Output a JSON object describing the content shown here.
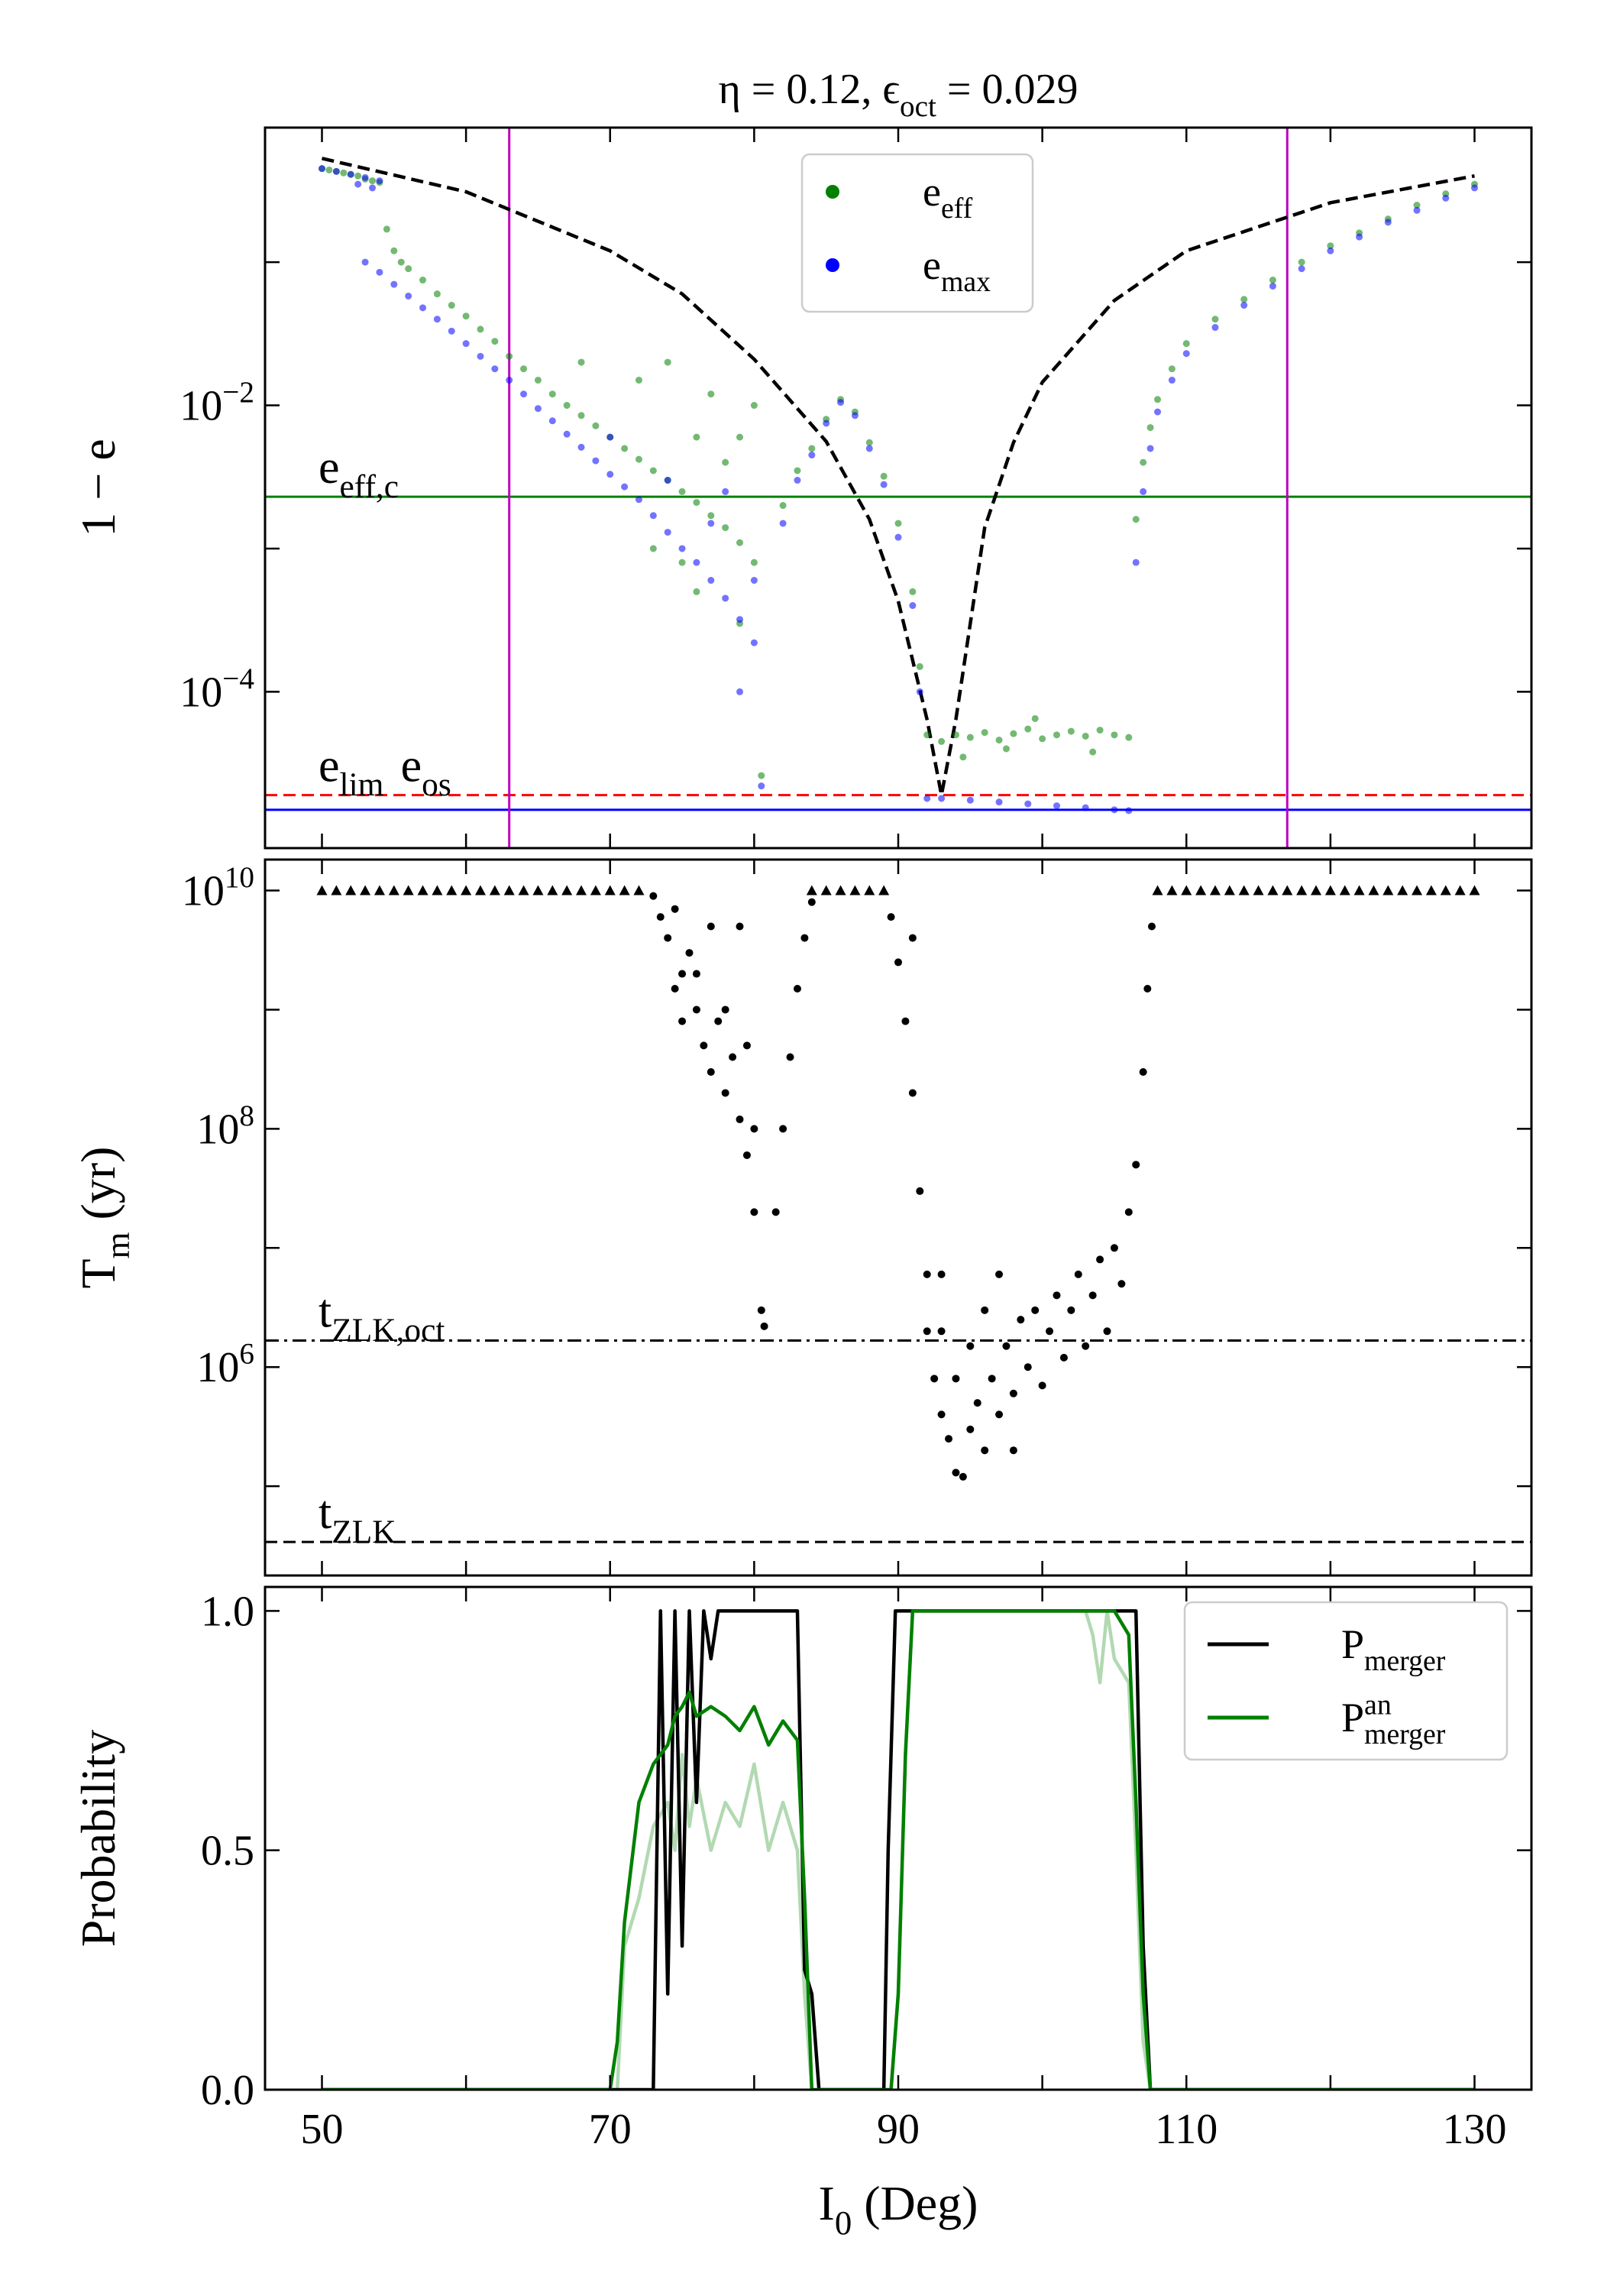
{
  "chart_data": [
    {
      "type": "scatter",
      "title": "η = 0.12, ϵ_{oct} = 0.029",
      "ylabel": "1 − e",
      "yscale": "log",
      "xlim": [
        46.05,
        133.95
      ],
      "xticks": [
        50,
        70,
        90,
        110,
        130
      ],
      "xminorticks": [
        60,
        80,
        100,
        120
      ],
      "ylim": [
        8.1e-06,
        0.87
      ],
      "yticks": [
        {
          "value": 0.01,
          "label": "10^{−2}"
        },
        {
          "value": 0.0001,
          "label": "10^{−4}"
        }
      ],
      "yminorticks": [
        0.1,
        0.001
      ],
      "legend": "upper center",
      "series": [
        {
          "type": "line",
          "color": "#000000",
          "style": "dashed",
          "x": [
            50,
            60,
            70,
            75,
            80,
            85,
            88,
            90,
            92,
            93,
            94,
            96,
            98,
            100,
            105,
            110,
            120,
            130
          ],
          "values": [
            0.53,
            0.31,
            0.12,
            0.06,
            0.021,
            0.0056,
            0.0016,
            0.00043,
            6.4e-05,
            1.9e-05,
            6.4e-05,
            0.0014,
            0.0055,
            0.0145,
            0.054,
            0.12,
            0.26,
            0.4
          ]
        },
        {
          "type": "scatter",
          "name": "e_{eff}",
          "color": "#008000",
          "x": [
            50,
            50.5,
            51,
            51.5,
            52,
            52.5,
            53,
            53.5,
            54,
            54.5,
            55,
            55.5,
            56,
            57,
            58,
            59,
            60,
            61,
            62,
            63,
            64,
            65,
            66,
            67,
            68,
            69,
            70,
            71,
            72,
            73,
            74,
            75,
            76,
            77,
            78,
            79,
            80,
            68,
            72,
            74,
            76,
            77,
            78,
            79,
            80,
            73,
            75,
            76,
            79,
            80.5,
            82,
            83,
            84,
            85,
            86,
            87,
            88,
            89,
            90,
            91,
            91.5,
            92,
            93,
            94,
            95,
            96,
            97,
            98,
            99,
            100,
            101,
            102,
            103,
            104,
            105,
            106,
            94.5,
            99.5,
            103.5,
            97.5,
            106.5,
            107,
            107.5,
            108,
            109,
            110,
            112,
            114,
            116,
            118,
            120,
            122,
            124,
            126,
            128,
            130
          ],
          "values": [
            0.45,
            0.44,
            0.43,
            0.42,
            0.41,
            0.4,
            0.38,
            0.37,
            0.36,
            0.17,
            0.12,
            0.1,
            0.09,
            0.075,
            0.06,
            0.05,
            0.042,
            0.034,
            0.028,
            0.022,
            0.018,
            0.015,
            0.012,
            0.01,
            0.0085,
            0.0072,
            0.006,
            0.005,
            0.0042,
            0.0035,
            0.003,
            0.0025,
            0.0021,
            0.0017,
            0.0014,
            0.0011,
            0.0008,
            0.02,
            0.015,
            0.02,
            0.006,
            0.012,
            0.004,
            0.006,
            0.01,
            0.001,
            0.0008,
            0.0005,
            0.0003,
            2.6e-05,
            0.002,
            0.0035,
            0.005,
            0.008,
            0.011,
            0.009,
            0.0055,
            0.0032,
            0.0015,
            0.0005,
            0.00015,
            5e-05,
            4.5e-05,
            5e-05,
            4.8e-05,
            5.2e-05,
            4.6e-05,
            5.1e-05,
            5.5e-05,
            4.7e-05,
            5e-05,
            5.3e-05,
            4.9e-05,
            5.4e-05,
            5e-05,
            4.8e-05,
            3.5e-05,
            6.5e-05,
            3.8e-05,
            4e-05,
            0.0016,
            0.004,
            0.007,
            0.011,
            0.018,
            0.027,
            0.04,
            0.055,
            0.075,
            0.1,
            0.13,
            0.16,
            0.2,
            0.25,
            0.3,
            0.35
          ]
        },
        {
          "type": "scatter",
          "name": "e_{max}",
          "color": "#0000ff",
          "x": [
            50,
            51,
            52,
            53,
            54,
            52.5,
            53.5,
            53,
            54,
            55,
            56,
            57,
            58,
            59,
            60,
            61,
            62,
            63,
            64,
            65,
            66,
            67,
            68,
            69,
            70,
            71,
            72,
            73,
            74,
            75,
            76,
            77,
            78,
            79,
            80,
            70,
            74,
            77,
            78,
            80,
            79,
            80.5,
            82,
            83,
            84,
            85,
            86,
            87,
            88,
            89,
            90,
            91,
            91.5,
            92,
            93,
            95,
            97,
            99,
            101,
            103,
            105,
            106,
            106.5,
            107,
            107.5,
            108,
            109,
            110,
            112,
            114,
            116,
            118,
            120,
            122,
            124,
            126,
            128,
            130
          ],
          "values": [
            0.45,
            0.43,
            0.41,
            0.39,
            0.37,
            0.35,
            0.33,
            0.1,
            0.085,
            0.07,
            0.058,
            0.048,
            0.04,
            0.033,
            0.027,
            0.022,
            0.018,
            0.015,
            0.012,
            0.0095,
            0.0078,
            0.0063,
            0.0051,
            0.0041,
            0.0033,
            0.0027,
            0.0022,
            0.0017,
            0.0013,
            0.001,
            0.0008,
            0.0006,
            0.00045,
            0.00032,
            0.00022,
            0.006,
            0.003,
            0.0015,
            0.0025,
            0.0006,
            0.0001,
            2.2e-05,
            0.0015,
            0.003,
            0.0045,
            0.0075,
            0.0105,
            0.0085,
            0.005,
            0.0028,
            0.0012,
            0.0004,
            0.0001,
            1.8e-05,
            1.8e-05,
            1.75e-05,
            1.7e-05,
            1.65e-05,
            1.6e-05,
            1.55e-05,
            1.5e-05,
            1.48e-05,
            0.0008,
            0.0025,
            0.005,
            0.009,
            0.015,
            0.023,
            0.035,
            0.05,
            0.068,
            0.09,
            0.12,
            0.15,
            0.19,
            0.23,
            0.28,
            0.33
          ]
        }
      ],
      "hlines": [
        {
          "value": 0.0023,
          "color": "#008000",
          "style": "solid",
          "label": "e_{eff,c}"
        },
        {
          "value": 1.9e-05,
          "color": "#ff0000",
          "style": "dashed",
          "label": "e_{lim}"
        },
        {
          "value": 1.5e-05,
          "color": "#0000ff",
          "style": "solid",
          "label": "e_{os}"
        }
      ],
      "vlines": [
        {
          "value": 63,
          "color": "#bf00bf"
        },
        {
          "value": 117,
          "color": "#bf00bf"
        }
      ]
    },
    {
      "type": "scatter",
      "ylabel": "T_{m} (yr)",
      "yscale": "log",
      "xlim": [
        46.05,
        133.95
      ],
      "xticks": [
        50,
        70,
        90,
        110,
        130
      ],
      "xminorticks": [
        60,
        80,
        100,
        120
      ],
      "ylim": [
        17800.0,
        18200000000.0
      ],
      "yticks": [
        {
          "value": 10000000000.0,
          "label": "10^{10}"
        },
        {
          "value": 100000000.0,
          "label": "10^{8}"
        },
        {
          "value": 1000000.0,
          "label": "10^{6}"
        }
      ],
      "yminorticks": [
        1000000000.0,
        10000000.0,
        100000.0
      ],
      "series": [
        {
          "type": "scatter",
          "marker": "^",
          "color": "#000000",
          "x": [
            50,
            51,
            52,
            53,
            54,
            55,
            56,
            57,
            58,
            59,
            60,
            61,
            62,
            63,
            64,
            65,
            66,
            67,
            68,
            69,
            70,
            71,
            72,
            84,
            85,
            86,
            87,
            88,
            89,
            108,
            109,
            110,
            111,
            112,
            113,
            114,
            115,
            116,
            117,
            118,
            119,
            120,
            121,
            122,
            123,
            124,
            125,
            126,
            127,
            128,
            129,
            130
          ],
          "values": [
            10000000000.0,
            10000000000.0,
            10000000000.0,
            10000000000.0,
            10000000000.0,
            10000000000.0,
            10000000000.0,
            10000000000.0,
            10000000000.0,
            10000000000.0,
            10000000000.0,
            10000000000.0,
            10000000000.0,
            10000000000.0,
            10000000000.0,
            10000000000.0,
            10000000000.0,
            10000000000.0,
            10000000000.0,
            10000000000.0,
            10000000000.0,
            10000000000.0,
            10000000000.0,
            10000000000.0,
            10000000000.0,
            10000000000.0,
            10000000000.0,
            10000000000.0,
            10000000000.0,
            10000000000.0,
            10000000000.0,
            10000000000.0,
            10000000000.0,
            10000000000.0,
            10000000000.0,
            10000000000.0,
            10000000000.0,
            10000000000.0,
            10000000000.0,
            10000000000.0,
            10000000000.0,
            10000000000.0,
            10000000000.0,
            10000000000.0,
            10000000000.0,
            10000000000.0,
            10000000000.0,
            10000000000.0,
            10000000000.0,
            10000000000.0,
            10000000000.0,
            10000000000.0
          ]
        },
        {
          "type": "scatter",
          "marker": "o",
          "color": "#000000",
          "x": [
            73,
            73.5,
            74,
            74.5,
            75,
            75.5,
            76,
            76.5,
            77,
            77.5,
            78,
            78.5,
            79,
            79.5,
            80,
            80.5,
            80.7,
            79,
            77,
            76,
            78,
            75,
            74.5,
            79.5,
            80,
            81.5,
            82,
            82.5,
            83,
            83.5,
            84,
            89.5,
            90,
            90.5,
            91,
            91,
            91.5,
            92,
            92,
            92.5,
            93,
            93.5,
            94,
            94.5,
            95,
            95.5,
            96,
            96.5,
            97,
            97.5,
            98,
            98.5,
            99,
            99.5,
            100,
            100.5,
            101,
            101.5,
            102,
            102.5,
            103,
            103.5,
            104,
            104.5,
            105,
            105.5,
            106,
            106.5,
            107,
            107.3,
            107.6,
            93,
            94,
            95,
            96,
            97,
            98,
            93
          ],
          "values": [
            9000000000.0,
            6000000000.0,
            4000000000.0,
            7000000000.0,
            2000000000.0,
            3000000000.0,
            1000000000.0,
            500000000.0,
            300000000.0,
            800000000.0,
            200000000.0,
            400000000.0,
            120000000.0,
            60000000.0,
            20000000.0,
            3000000.0,
            2200000.0,
            5000000000.0,
            5000000000.0,
            2000000000.0,
            1000000000.0,
            800000000.0,
            1500000000.0,
            500000000.0,
            100000000.0,
            20000000.0,
            100000000.0,
            400000000.0,
            1500000000.0,
            4000000000.0,
            8000000000.0,
            6000000000.0,
            2500000000.0,
            800000000.0,
            200000000.0,
            4000000000.0,
            30000000.0,
            6000000.0,
            2000000.0,
            800000.0,
            400000.0,
            250000.0,
            130000.0,
            120000.0,
            300000.0,
            500000.0,
            200000.0,
            800000.0,
            400000.0,
            1500000.0,
            600000.0,
            2500000.0,
            1000000.0,
            3000000.0,
            700000.0,
            2000000.0,
            4000000.0,
            1200000.0,
            3000000.0,
            6000000.0,
            1500000.0,
            4000000.0,
            8000000.0,
            2000000.0,
            10000000.0,
            5000000.0,
            20000000.0,
            50000000.0,
            300000000.0,
            1500000000.0,
            5000000000.0,
            2000000.0,
            800000.0,
            1500000.0,
            3000000.0,
            6000000.0,
            200000.0,
            6000000.0
          ]
        }
      ],
      "hlines": [
        {
          "value": 1670000.0,
          "color": "#000000",
          "style": "dashdot",
          "label": "t_{ZLK,oct}"
        },
        {
          "value": 34000.0,
          "color": "#000000",
          "style": "dashed",
          "label": "t_{ZLK}"
        }
      ]
    },
    {
      "type": "line",
      "ylabel": "Probability",
      "xlabel": "I_{0} (Deg)",
      "xlim": [
        46.05,
        133.95
      ],
      "xticks": [
        50,
        70,
        90,
        110,
        130
      ],
      "xminorticks": [
        60,
        80,
        100,
        120
      ],
      "ylim": [
        0,
        1.05
      ],
      "yticks": [
        {
          "value": 0,
          "label": "0.0"
        },
        {
          "value": 0.5,
          "label": "0.5"
        },
        {
          "value": 1,
          "label": "1.0"
        }
      ],
      "legend": "upper right",
      "series": [
        {
          "type": "line",
          "color": "#008000",
          "alpha": 0.3,
          "x": [
            50,
            70.5,
            71,
            72,
            73,
            74,
            74.5,
            75,
            75.5,
            76,
            77,
            78,
            79,
            80,
            81,
            82,
            83,
            83.5,
            84,
            89.5,
            90,
            90.5,
            91,
            103,
            103.5,
            104,
            104.5,
            105,
            106,
            106.5,
            107,
            107.5,
            130
          ],
          "values": [
            0,
            0,
            0.3,
            0.4,
            0.55,
            0.6,
            0.5,
            0.7,
            0.55,
            0.65,
            0.5,
            0.6,
            0.55,
            0.68,
            0.5,
            0.6,
            0.5,
            0.2,
            0,
            0,
            0.2,
            0.7,
            1,
            1,
            0.95,
            0.85,
            1,
            0.9,
            0.85,
            0.5,
            0.1,
            0,
            0
          ]
        },
        {
          "type": "line",
          "name": "P_{merger}",
          "color": "#000000",
          "x": [
            50,
            72.5,
            73,
            73.5,
            74,
            74.5,
            75,
            75.5,
            76,
            76.5,
            77,
            77.5,
            83,
            83.5,
            84,
            84.5,
            89,
            89.3,
            89.8,
            106.5,
            107,
            107.5,
            130
          ],
          "values": [
            0,
            0,
            0,
            1,
            0.2,
            1,
            0.3,
            1,
            0.6,
            1,
            0.9,
            1,
            1,
            0.25,
            0.2,
            0,
            0,
            0.5,
            1,
            1,
            0.3,
            0,
            0
          ]
        },
        {
          "type": "line",
          "name": "P^{an}_{merger}",
          "color": "#008000",
          "x": [
            50,
            70,
            70.5,
            71,
            72,
            73,
            74,
            74.5,
            75,
            75.5,
            76,
            77,
            78,
            79,
            80,
            81,
            82,
            83,
            83.5,
            84,
            89.5,
            90,
            90.5,
            91,
            105,
            106,
            106.5,
            107,
            107.5,
            130
          ],
          "values": [
            0,
            0,
            0.1,
            0.35,
            0.6,
            0.68,
            0.72,
            0.78,
            0.8,
            0.83,
            0.78,
            0.8,
            0.78,
            0.75,
            0.8,
            0.72,
            0.77,
            0.73,
            0.4,
            0,
            0,
            0.2,
            0.7,
            1,
            1,
            0.95,
            0.6,
            0.2,
            0,
            0
          ]
        }
      ]
    }
  ]
}
